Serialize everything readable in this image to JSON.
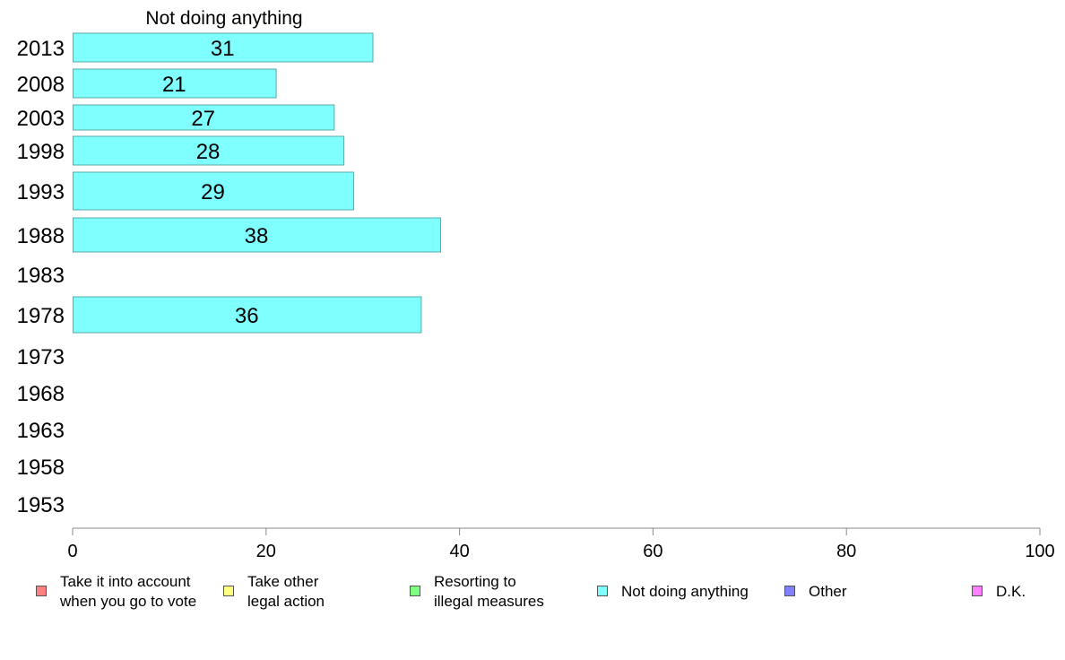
{
  "chart_data": {
    "type": "bar",
    "orientation": "horizontal",
    "title": "Not doing anything",
    "categories": [
      "2013",
      "2008",
      "2003",
      "1998",
      "1993",
      "1988",
      "1983",
      "1978",
      "1973",
      "1968",
      "1963",
      "1958",
      "1953"
    ],
    "series": [
      {
        "name": "Not doing anything",
        "color": "#80ffff",
        "values": [
          31,
          21,
          27,
          28,
          29,
          38,
          null,
          36,
          null,
          null,
          null,
          null,
          null
        ]
      }
    ],
    "xlim": [
      0,
      100
    ],
    "xticks": [
      "0",
      "20",
      "40",
      "60",
      "80",
      "100"
    ],
    "grid": false,
    "legend": {
      "position": "bottom",
      "items": [
        {
          "label": "Take it into account\nwhen you go to vote",
          "color": "#ff8080"
        },
        {
          "label": "Take other\nlegal action",
          "color": "#ffff80"
        },
        {
          "label": "Resorting to\nillegal measures",
          "color": "#80ff80"
        },
        {
          "label": "Not doing anything",
          "color": "#80ffff"
        },
        {
          "label": "Other",
          "color": "#8080ff"
        },
        {
          "label": "D.K.",
          "color": "#ff80ff"
        }
      ]
    }
  }
}
